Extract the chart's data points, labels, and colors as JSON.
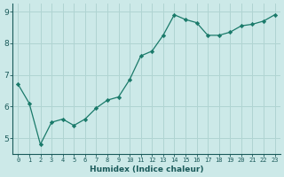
{
  "x": [
    0,
    1,
    2,
    3,
    4,
    5,
    6,
    7,
    8,
    9,
    10,
    11,
    12,
    13,
    14,
    15,
    16,
    17,
    18,
    19,
    20,
    21,
    22,
    23
  ],
  "y": [
    6.7,
    6.1,
    4.8,
    5.5,
    5.6,
    5.4,
    5.6,
    5.95,
    6.2,
    6.3,
    6.85,
    7.6,
    7.75,
    8.25,
    8.9,
    8.75,
    8.65,
    8.25,
    8.25,
    8.35,
    8.55,
    8.6,
    8.7,
    8.9
  ],
  "line_color": "#1a7a6a",
  "marker": "D",
  "marker_size": 2.2,
  "bg_color": "#cce9e8",
  "grid_color": "#b0d4d2",
  "xlabel": "Humidex (Indice chaleur)",
  "xlim": [
    -0.5,
    23.5
  ],
  "ylim": [
    4.5,
    9.25
  ],
  "yticks": [
    5,
    6,
    7,
    8,
    9
  ],
  "xticks": [
    0,
    1,
    2,
    3,
    4,
    5,
    6,
    7,
    8,
    9,
    10,
    11,
    12,
    13,
    14,
    15,
    16,
    17,
    18,
    19,
    20,
    21,
    22,
    23
  ],
  "xlabel_fontsize": 6.5,
  "xtick_fontsize": 5.0,
  "ytick_fontsize": 6.5,
  "tick_color": "#1a5a5a",
  "spine_color": "#1a5a5a"
}
